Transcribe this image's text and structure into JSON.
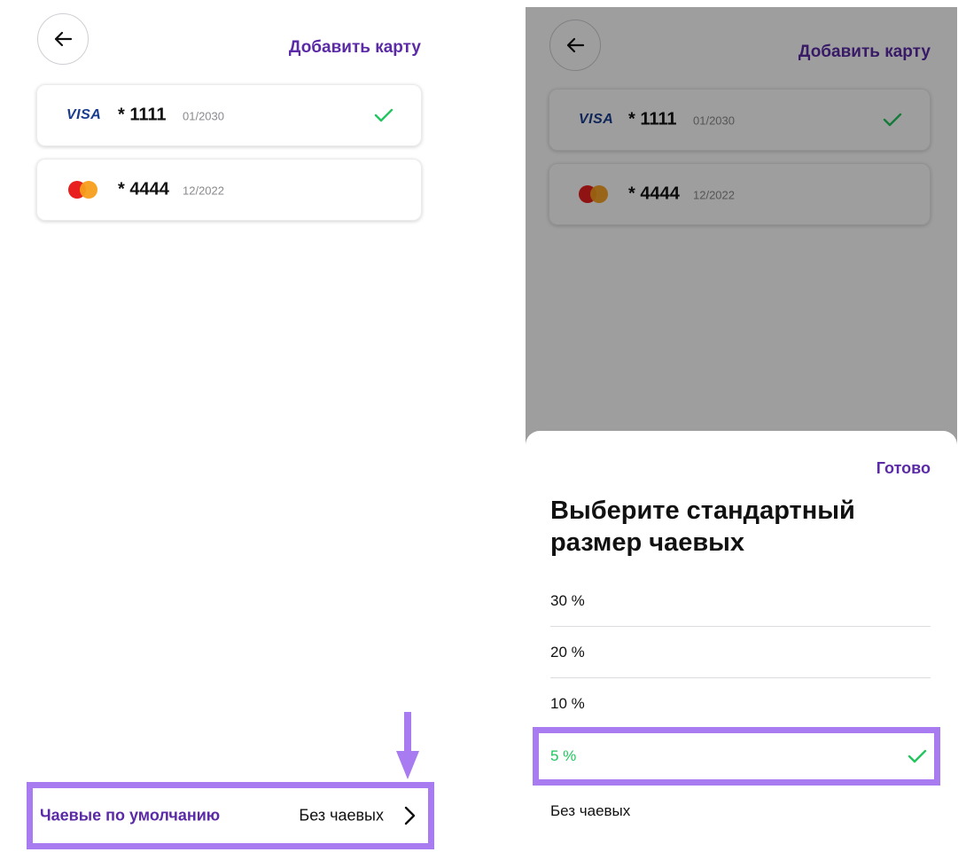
{
  "left": {
    "add_card_label": "Добавить карту",
    "cards": [
      {
        "brand": "VISA",
        "number": "* 1111",
        "expiry": "01/2030",
        "selected": true
      },
      {
        "brand": "mastercard",
        "number": "* 4444",
        "expiry": "12/2022",
        "selected": false
      }
    ],
    "tips_row": {
      "label": "Чаевые по умолчанию",
      "value": "Без чаевых"
    }
  },
  "right": {
    "add_card_label": "Добавить карту",
    "cards": [
      {
        "brand": "VISA",
        "number": "* 1111",
        "expiry": "01/2030",
        "selected": true
      },
      {
        "brand": "mastercard",
        "number": "* 4444",
        "expiry": "12/2022",
        "selected": false
      }
    ],
    "sheet": {
      "done_label": "Готово",
      "title": "Выберите стандартный размер чаевых",
      "options": [
        "30 %",
        "20 %",
        "10 %",
        "5 %",
        "Без чаевых"
      ],
      "selected_option": "5 %"
    }
  },
  "colors": {
    "accent": "#5b2aa6",
    "highlight": "#a97bf0",
    "success": "#22c55e",
    "visa": "#1a3c8f",
    "mc_red": "#e8201f",
    "mc_orange": "#f79e1b"
  }
}
